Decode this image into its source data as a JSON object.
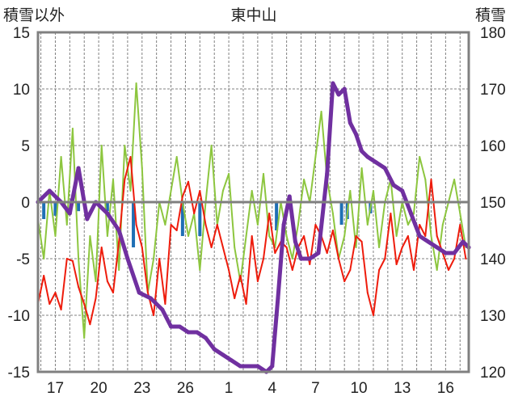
{
  "chart_data": {
    "type": "line",
    "title": "東中山",
    "left_axis_label": "積雪以外",
    "right_axis_label": "積雪",
    "left_ylim": [
      -15,
      15
    ],
    "left_yticks": [
      15,
      10,
      5,
      0,
      -5,
      -10,
      -15
    ],
    "right_ylim": [
      120,
      180
    ],
    "right_yticks": [
      180,
      170,
      160,
      150,
      140,
      130,
      120
    ],
    "x_ticks": [
      {
        "label": "17",
        "x": 17
      },
      {
        "label": "20",
        "x": 20
      },
      {
        "label": "23",
        "x": 23
      },
      {
        "label": "26",
        "x": 26
      },
      {
        "label": "1",
        "x": 29
      },
      {
        "label": "4",
        "x": 32
      },
      {
        "label": "7",
        "x": 35
      },
      {
        "label": "10",
        "x": 38
      },
      {
        "label": "13",
        "x": 41
      },
      {
        "label": "16",
        "x": 44
      }
    ],
    "xlim": [
      15.8,
      45.6
    ],
    "grid": true,
    "colors": {
      "red": "#ee1c0c",
      "green": "#8dc63f",
      "blue": "#1f6fb5",
      "purple": "#7030a0",
      "zero_line": "#7f7f7f",
      "frame": "#808080",
      "grid": "#808080"
    },
    "series": [
      {
        "color": "red",
        "axis": "left",
        "x": [
          15.8,
          16.2,
          16.6,
          17.0,
          17.4,
          17.8,
          18.2,
          18.6,
          19.0,
          19.4,
          19.8,
          20.2,
          20.6,
          21.0,
          21.4,
          21.8,
          22.2,
          22.6,
          23.0,
          23.4,
          23.8,
          24.2,
          24.6,
          25.0,
          25.4,
          25.8,
          26.2,
          26.6,
          27.0,
          27.4,
          27.8,
          28.2,
          28.6,
          29.0,
          29.4,
          29.8,
          30.2,
          30.6,
          31.0,
          31.4,
          31.8,
          32.2,
          32.6,
          33.0,
          33.4,
          33.8,
          34.2,
          34.6,
          35.0,
          35.4,
          35.8,
          36.2,
          36.6,
          37.0,
          37.4,
          37.8,
          38.2,
          38.6,
          39.0,
          39.4,
          39.8,
          40.2,
          40.6,
          41.0,
          41.4,
          41.8,
          42.2,
          42.6,
          43.0,
          43.4,
          43.8,
          44.2,
          44.6,
          45.0,
          45.4
        ],
        "values": [
          -9,
          -6.5,
          -9,
          -8,
          -9.5,
          -5,
          -5.2,
          -7.5,
          -9,
          -10.8,
          -8.5,
          -4,
          -7,
          -8,
          -3.5,
          2,
          4,
          -2,
          -4,
          -8,
          -10,
          -5,
          -9,
          -2,
          -2.5,
          0.5,
          1.8,
          -1,
          1,
          -2,
          -4,
          -2,
          -4,
          -6,
          -8.5,
          -6.5,
          -9,
          -3,
          -7,
          -5,
          -1,
          -4.5,
          -3.5,
          -4,
          -6,
          -4,
          -3,
          -5.5,
          -2,
          -3,
          -4.5,
          -2.5,
          -5,
          -7,
          -6,
          -3,
          -3.5,
          -8,
          -10,
          -6,
          -5,
          -1,
          -5.5,
          -4,
          -3,
          -6,
          -2,
          -3,
          2,
          -3,
          -4.5,
          -6,
          -5,
          -2,
          -5
        ]
      },
      {
        "color": "green",
        "axis": "left",
        "x": [
          15.8,
          16.2,
          16.6,
          17.0,
          17.4,
          17.8,
          18.2,
          18.6,
          19.0,
          19.4,
          19.8,
          20.2,
          20.6,
          21.0,
          21.4,
          21.8,
          22.2,
          22.6,
          23.0,
          23.4,
          23.8,
          24.2,
          24.6,
          25.0,
          25.4,
          25.8,
          26.2,
          26.6,
          27.0,
          27.4,
          27.8,
          28.2,
          28.6,
          29.0,
          29.4,
          29.8,
          30.2,
          30.6,
          31.0,
          31.4,
          31.8,
          32.2,
          32.6,
          33.0,
          33.4,
          33.8,
          34.2,
          34.6,
          35.0,
          35.4,
          35.8,
          36.2,
          36.6,
          37.0,
          37.4,
          37.8,
          38.2,
          38.6,
          39.0,
          39.4,
          39.8,
          40.2,
          40.6,
          41.0,
          41.4,
          41.8,
          42.2,
          42.6,
          43.0,
          43.4,
          43.8,
          44.2,
          44.6,
          45.0,
          45.4
        ],
        "values": [
          -1.5,
          -5,
          1,
          -3,
          4,
          -2,
          6.5,
          -5,
          -12,
          -3,
          -7,
          5,
          -3,
          2,
          -6,
          5,
          1,
          10.5,
          3,
          -8,
          -5,
          0,
          -2,
          1,
          4,
          0,
          -3,
          -1,
          -6,
          0,
          5,
          -2,
          1,
          2.5,
          -4,
          -7,
          -3,
          1,
          -2,
          2.5,
          -3,
          -4,
          0,
          -3,
          -5,
          -2,
          2,
          0,
          4,
          8,
          2,
          -1,
          -5,
          -3,
          1,
          -4,
          3,
          -2,
          1,
          -4,
          0,
          2,
          -3,
          0,
          -2,
          -1,
          4,
          2,
          -3,
          -6,
          -2,
          0,
          2,
          -1,
          -4
        ]
      },
      {
        "color": "blue",
        "axis": "left",
        "x": [
          16.2,
          17.0,
          18.6,
          20.6,
          22.4,
          25.8,
          27.0,
          32.3,
          36.8,
          37.2,
          38.8
        ],
        "values": [
          -1.5,
          -1.2,
          -0.8,
          -0.8,
          -4,
          -3,
          -3,
          -2.5,
          -2,
          -1.5,
          -1
        ]
      },
      {
        "color": "purple",
        "axis": "right",
        "x": [
          15.8,
          16.6,
          17.4,
          18.0,
          18.6,
          19.2,
          19.8,
          20.6,
          21.4,
          22.0,
          22.8,
          23.6,
          24.4,
          25.0,
          25.6,
          26.2,
          26.8,
          27.4,
          28.0,
          28.6,
          29.2,
          29.8,
          30.4,
          31.0,
          31.6,
          32.0,
          32.4,
          32.8,
          33.2,
          33.6,
          34.0,
          34.6,
          35.2,
          35.8,
          36.2,
          36.6,
          37.0,
          37.4,
          37.8,
          38.2,
          38.6,
          39.2,
          39.8,
          40.4,
          41.0,
          41.6,
          42.2,
          42.8,
          43.4,
          44.0,
          44.6,
          45.2,
          45.6
        ],
        "values": [
          150,
          152,
          150,
          148,
          156,
          147,
          150,
          148,
          145,
          140,
          134,
          133,
          131,
          128,
          128,
          127,
          127,
          126,
          124,
          123,
          122,
          121,
          121,
          121,
          120,
          121,
          133,
          146,
          151,
          143,
          140,
          140,
          141,
          155,
          171,
          169,
          170,
          164,
          162,
          159,
          158,
          157,
          156,
          153,
          152,
          148,
          144,
          143,
          142,
          141,
          141,
          143,
          142
        ]
      }
    ]
  }
}
